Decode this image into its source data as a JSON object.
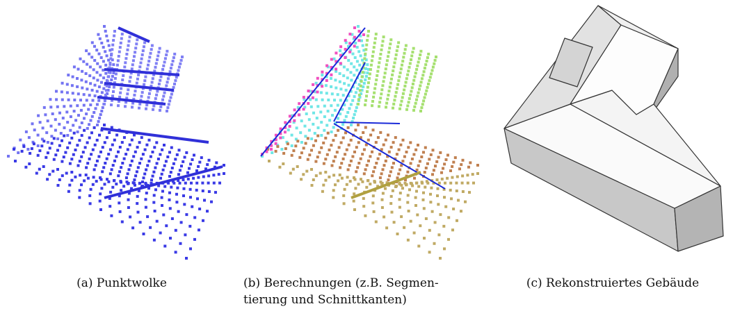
{
  "panels": [
    {
      "caption": [
        "(a) Punktwolke"
      ]
    },
    {
      "caption": [
        "(b) Berechnungen (z.B. Segmen-",
        "tierung und Schnittkanten)"
      ]
    },
    {
      "caption": [
        "(c) Rekonstruiertes Gebäude"
      ]
    }
  ]
}
